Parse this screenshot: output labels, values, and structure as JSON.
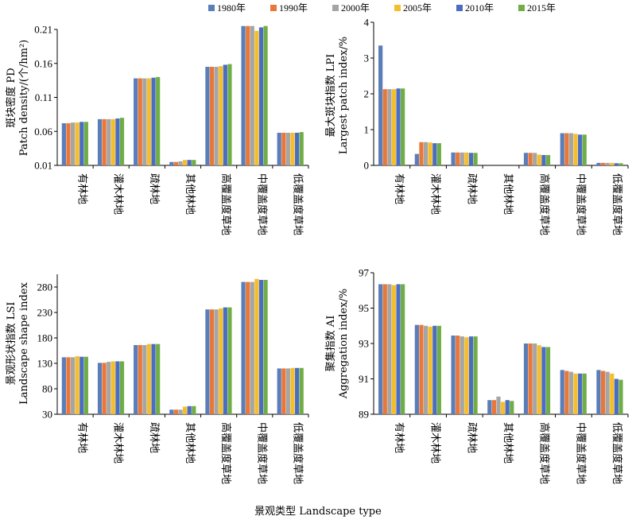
{
  "legend": {
    "items": [
      {
        "label": "1980年",
        "color": "#5B7DB8"
      },
      {
        "label": "1990年",
        "color": "#E8773A"
      },
      {
        "label": "2000年",
        "color": "#A5A5A5"
      },
      {
        "label": "2005年",
        "color": "#F5BE2D"
      },
      {
        "label": "2010年",
        "color": "#4A6DC2"
      },
      {
        "label": "2015年",
        "color": "#70AD47"
      }
    ]
  },
  "footer": {
    "xlabel": "景观类型 Landscape type"
  },
  "chart_data": [
    {
      "type": "bar",
      "ylabel_cn": "斑块密度 PD",
      "ylabel_en": "Patch density/(个/hm²)",
      "categories": [
        "有林地",
        "灌木林地",
        "疏林地",
        "其他林地",
        "高覆盖度草地",
        "中覆盖度草地",
        "低覆盖度草地"
      ],
      "yticks": [
        "0.01",
        "0.06",
        "0.11",
        "0.16",
        "0.21"
      ],
      "ylim": [
        0.01,
        0.21
      ],
      "series": [
        {
          "name": "1980年",
          "values": [
            0.072,
            0.078,
            0.138,
            0.015,
            0.155,
            0.215,
            0.058
          ]
        },
        {
          "name": "1990年",
          "values": [
            0.072,
            0.078,
            0.138,
            0.015,
            0.155,
            0.215,
            0.058
          ]
        },
        {
          "name": "2000年",
          "values": [
            0.073,
            0.078,
            0.138,
            0.016,
            0.155,
            0.215,
            0.058
          ]
        },
        {
          "name": "2005年",
          "values": [
            0.073,
            0.078,
            0.138,
            0.018,
            0.156,
            0.208,
            0.058
          ]
        },
        {
          "name": "2010年",
          "values": [
            0.074,
            0.079,
            0.139,
            0.018,
            0.158,
            0.213,
            0.058
          ]
        },
        {
          "name": "2015年",
          "values": [
            0.074,
            0.08,
            0.14,
            0.018,
            0.159,
            0.215,
            0.059
          ]
        }
      ]
    },
    {
      "type": "bar",
      "ylabel_cn": "最大斑块指数 LPI",
      "ylabel_en": "Largest patch index/%",
      "categories": [
        "有林地",
        "灌木林地",
        "疏林地",
        "其他林地",
        "高覆盖度草地",
        "中覆盖度草地",
        "低覆盖度草地"
      ],
      "yticks": [
        "0",
        "1",
        "2",
        "3",
        "4"
      ],
      "ylim": [
        0,
        4
      ],
      "series": [
        {
          "name": "1980年",
          "values": [
            3.35,
            0.32,
            0.36,
            0.0,
            0.35,
            0.9,
            0.07
          ]
        },
        {
          "name": "1990年",
          "values": [
            2.13,
            0.65,
            0.36,
            0.0,
            0.35,
            0.9,
            0.07
          ]
        },
        {
          "name": "2000年",
          "values": [
            2.13,
            0.65,
            0.36,
            0.0,
            0.35,
            0.9,
            0.07
          ]
        },
        {
          "name": "2005年",
          "values": [
            2.13,
            0.64,
            0.36,
            0.0,
            0.3,
            0.88,
            0.07
          ]
        },
        {
          "name": "2010年",
          "values": [
            2.15,
            0.62,
            0.35,
            0.0,
            0.29,
            0.86,
            0.06
          ]
        },
        {
          "name": "2015年",
          "values": [
            2.15,
            0.62,
            0.35,
            0.0,
            0.29,
            0.86,
            0.06
          ]
        }
      ]
    },
    {
      "type": "bar",
      "ylabel_cn": "景观形状指数 LSI",
      "ylabel_en": "Landscape shape index",
      "categories": [
        "有林地",
        "灌木林地",
        "疏林地",
        "其他林地",
        "高覆盖度草地",
        "中覆盖度草地",
        "低覆盖度草地"
      ],
      "yticks": [
        "30",
        "80",
        "130",
        "180",
        "230",
        "280"
      ],
      "ylim": [
        30,
        305
      ],
      "series": [
        {
          "name": "1980年",
          "values": [
            142,
            131,
            166,
            39,
            236,
            290,
            120
          ]
        },
        {
          "name": "1990年",
          "values": [
            142,
            131,
            166,
            39,
            236,
            290,
            120
          ]
        },
        {
          "name": "2000年",
          "values": [
            142,
            133,
            166,
            39,
            236,
            290,
            120
          ]
        },
        {
          "name": "2005年",
          "values": [
            144,
            134,
            168,
            45,
            238,
            296,
            121
          ]
        },
        {
          "name": "2010年",
          "values": [
            143,
            134,
            168,
            46,
            240,
            294,
            121
          ]
        },
        {
          "name": "2015年",
          "values": [
            143,
            134,
            168,
            46,
            240,
            294,
            121
          ]
        }
      ]
    },
    {
      "type": "bar",
      "ylabel_cn": "聚集指数 AI",
      "ylabel_en": "Aggregation index/%",
      "categories": [
        "有林地",
        "灌木林地",
        "疏林地",
        "其他林地",
        "高覆盖度草地",
        "中覆盖度草地",
        "低覆盖度草地"
      ],
      "yticks": [
        "89",
        "91",
        "93",
        "95",
        "97"
      ],
      "ylim": [
        89,
        97
      ],
      "series": [
        {
          "name": "1980年",
          "values": [
            96.35,
            94.05,
            93.45,
            89.8,
            93.0,
            91.5,
            91.5
          ]
        },
        {
          "name": "1990年",
          "values": [
            96.35,
            94.05,
            93.45,
            89.8,
            93.0,
            91.45,
            91.45
          ]
        },
        {
          "name": "2000年",
          "values": [
            96.35,
            94.0,
            93.4,
            90.0,
            93.0,
            91.4,
            91.4
          ]
        },
        {
          "name": "2005年",
          "values": [
            96.3,
            93.95,
            93.35,
            89.7,
            92.9,
            91.3,
            91.3
          ]
        },
        {
          "name": "2010年",
          "values": [
            96.35,
            94.0,
            93.4,
            89.8,
            92.8,
            91.3,
            91.0
          ]
        },
        {
          "name": "2015年",
          "values": [
            96.35,
            94.0,
            93.4,
            89.75,
            92.8,
            91.3,
            90.95
          ]
        }
      ]
    }
  ]
}
